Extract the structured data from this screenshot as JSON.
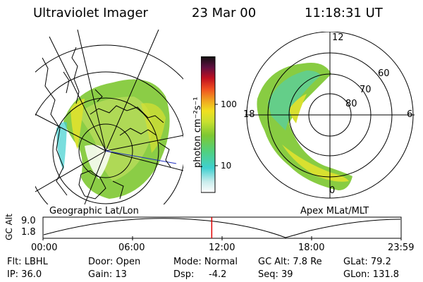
{
  "header": {
    "instrument": "Ultraviolet Imager",
    "date": "23 Mar 00",
    "time": "11:18:31 UT"
  },
  "left_panel": {
    "label": "Geographic Lat/Lon"
  },
  "right_panel": {
    "label": "Apex MLat/MLT",
    "mlt_labels": {
      "top": "12",
      "left": "18",
      "right": "6",
      "bottom": "0"
    },
    "lat_labels": [
      "60",
      "70",
      "80"
    ]
  },
  "colorbar": {
    "unit_label": "photon cm⁻²s⁻¹",
    "ticks": [
      "100",
      "10"
    ],
    "scale": "log"
  },
  "timeline": {
    "axis_label": "GC Alt",
    "y_ticks": [
      "9.0",
      "1.8"
    ],
    "x_ticks": [
      "00:00",
      "06:00",
      "12:00",
      "18:00",
      "23:59"
    ],
    "marker_time": "11:18"
  },
  "info": {
    "flt": "Flt: LBHL",
    "ip": "IP: 36.0",
    "door": "Door: Open",
    "gain": "Gain: 13",
    "mode": "Mode: Normal",
    "dsp_label": "Dsp:",
    "dsp_value": "-4.2",
    "gc_alt": "GC Alt: 7.8 Re",
    "seq": "Seq: 39",
    "glat": "GLat:  79.2",
    "glon": "GLon: 131.8"
  },
  "colors": {
    "green": "#7ec832",
    "yellow": "#d8e030",
    "cyan": "#40d0d0",
    "marker": "#e00000"
  }
}
